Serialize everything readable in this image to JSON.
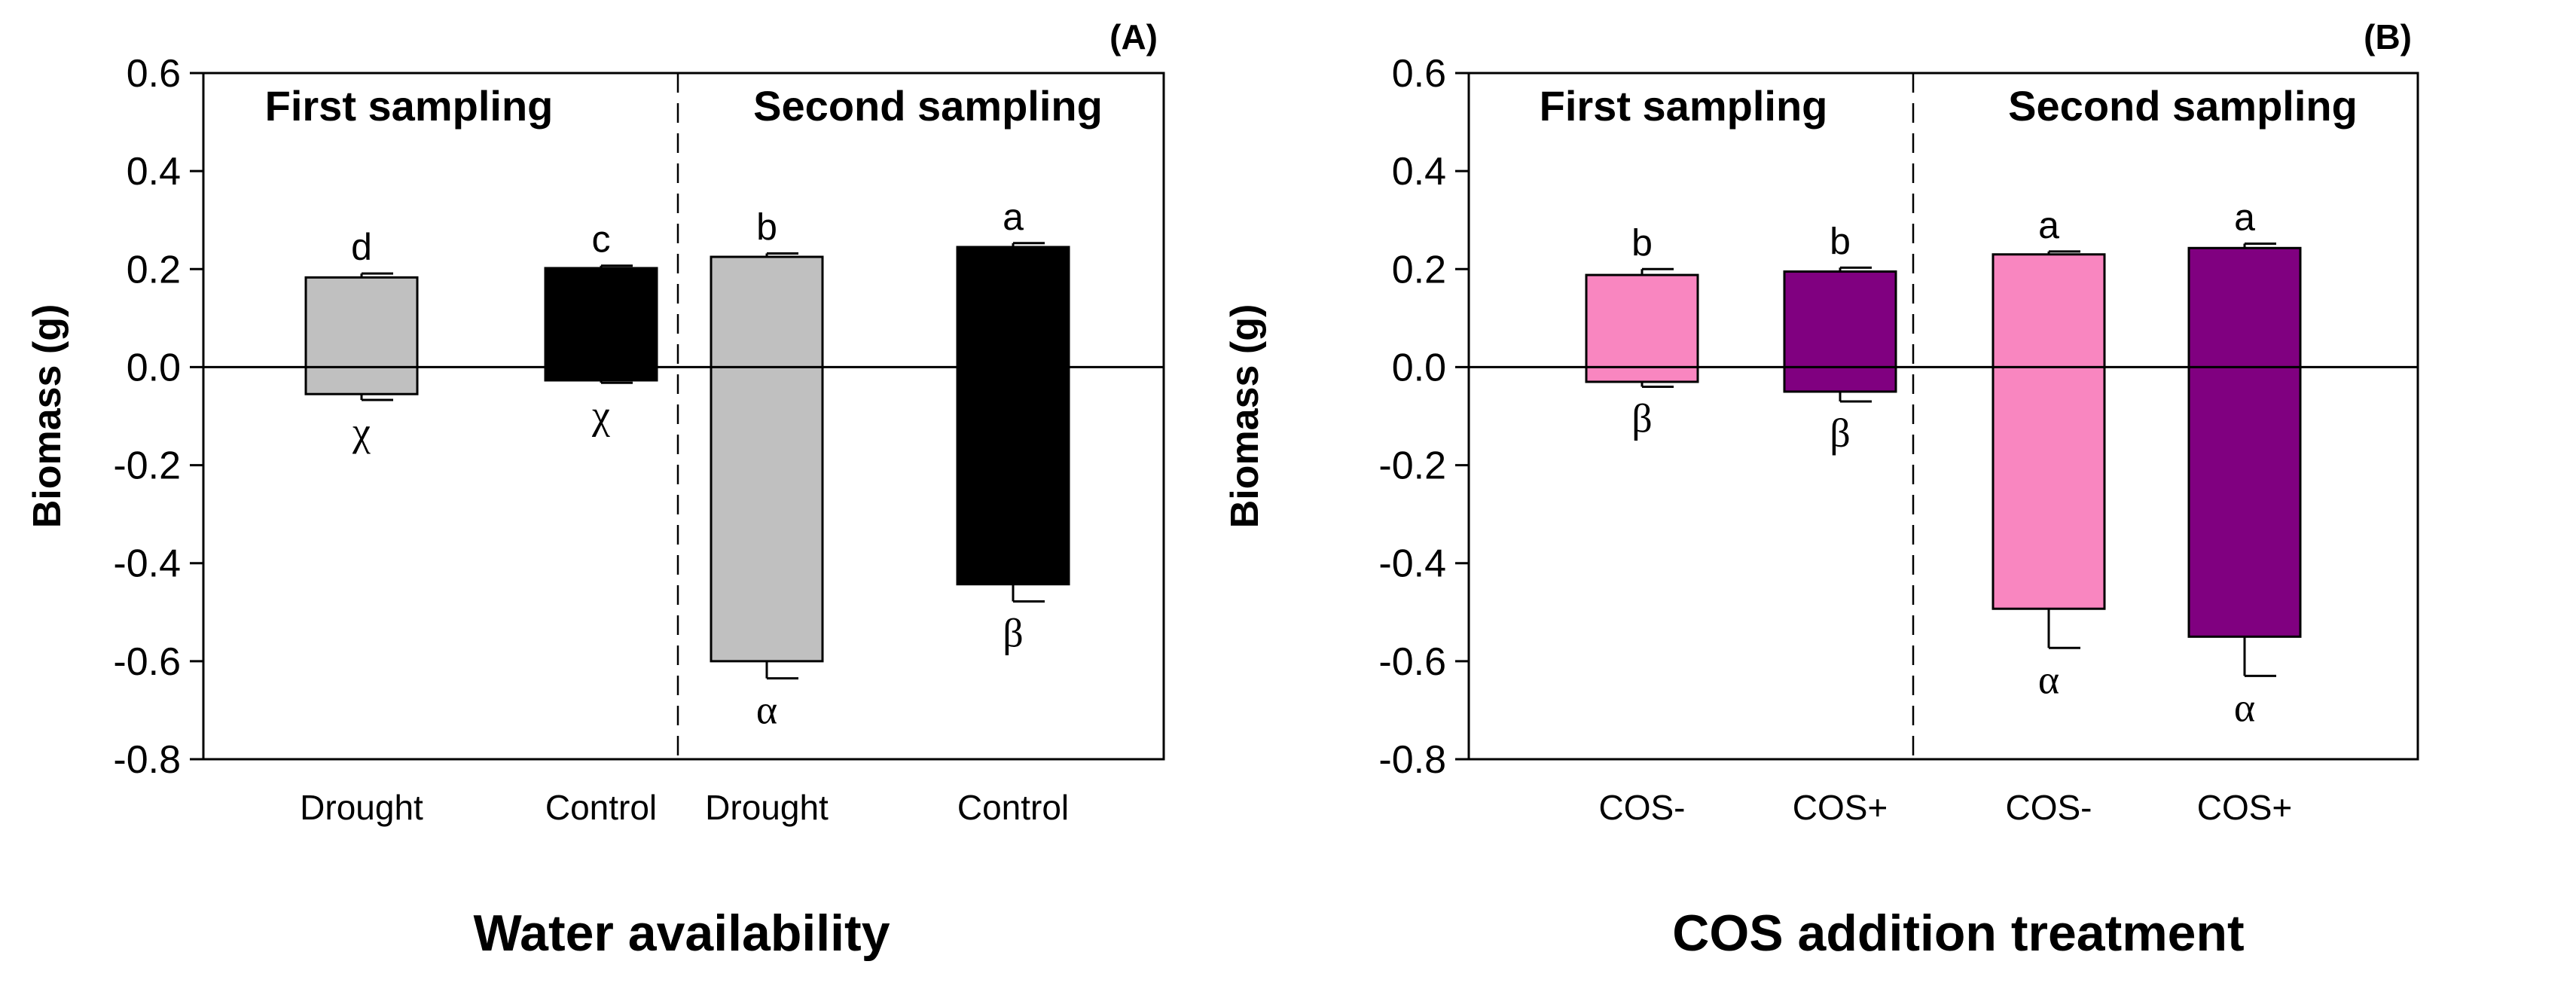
{
  "chart_data": [
    {
      "type": "bar",
      "panel_label": "(A)",
      "xlabel": "Water availability",
      "ylabel": "Biomass (g)",
      "ylim": [
        -0.8,
        0.6
      ],
      "yticks": [
        "0.6",
        "0.4",
        "0.2",
        "0.0",
        "-0.2",
        "-0.4",
        "-0.6",
        "-0.8"
      ],
      "sections": [
        "First sampling",
        "Second sampling"
      ],
      "categories": [
        "Drought",
        "Control",
        "Drought",
        "Control"
      ],
      "bars": [
        {
          "category": "Drought",
          "section": "First sampling",
          "positive": 0.183,
          "positive_err": 0.008,
          "negative": -0.055,
          "negative_err": 0.012,
          "top_letter": "d",
          "bottom_letter": "χ",
          "color": "#c0c0c0"
        },
        {
          "category": "Control",
          "section": "First sampling",
          "positive": 0.202,
          "positive_err": 0.005,
          "negative": -0.027,
          "negative_err": 0.005,
          "top_letter": "c",
          "bottom_letter": "χ",
          "color": "#000000"
        },
        {
          "category": "Drought",
          "section": "Second sampling",
          "positive": 0.225,
          "positive_err": 0.007,
          "negative": -0.6,
          "negative_err": 0.035,
          "top_letter": "b",
          "bottom_letter": "α",
          "color": "#c0c0c0"
        },
        {
          "category": "Control",
          "section": "Second sampling",
          "positive": 0.245,
          "positive_err": 0.008,
          "negative": -0.443,
          "negative_err": 0.035,
          "top_letter": "a",
          "bottom_letter": "β",
          "color": "#000000"
        }
      ]
    },
    {
      "type": "bar",
      "panel_label": "(B)",
      "xlabel": "COS addition treatment",
      "ylabel": "Biomass (g)",
      "ylim": [
        -0.8,
        0.6
      ],
      "yticks": [
        "0.6",
        "0.4",
        "0.2",
        "0.0",
        "-0.2",
        "-0.4",
        "-0.6",
        "-0.8"
      ],
      "sections": [
        "First sampling",
        "Second sampling"
      ],
      "categories": [
        "COS-",
        "COS+",
        "COS-",
        "COS+"
      ],
      "bars": [
        {
          "category": "COS-",
          "section": "First sampling",
          "positive": 0.188,
          "positive_err": 0.012,
          "negative": -0.03,
          "negative_err": 0.01,
          "top_letter": "b",
          "bottom_letter": "β",
          "color": "#f986c0"
        },
        {
          "category": "COS+",
          "section": "First sampling",
          "positive": 0.195,
          "positive_err": 0.008,
          "negative": -0.05,
          "negative_err": 0.02,
          "top_letter": "b",
          "bottom_letter": "β",
          "color": "#800080"
        },
        {
          "category": "COS-",
          "section": "Second sampling",
          "positive": 0.23,
          "positive_err": 0.006,
          "negative": -0.493,
          "negative_err": 0.08,
          "top_letter": "a",
          "bottom_letter": "α",
          "color": "#f986c0"
        },
        {
          "category": "COS+",
          "section": "Second sampling",
          "positive": 0.243,
          "positive_err": 0.009,
          "negative": -0.55,
          "negative_err": 0.08,
          "top_letter": "a",
          "bottom_letter": "α",
          "color": "#800080"
        }
      ]
    }
  ]
}
